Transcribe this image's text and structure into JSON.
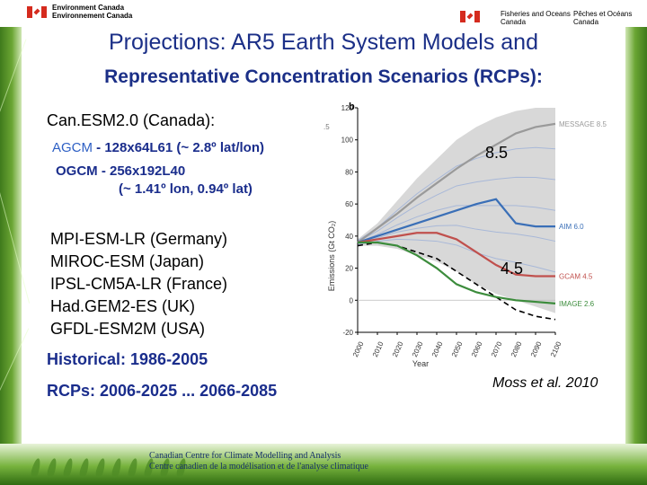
{
  "header": {
    "ec_line1": "Environment Canada",
    "ec_line2": "Environnement Canada",
    "dfo_en_line1": "Fisheries and Oceans",
    "dfo_en_line2": "Canada",
    "dfo_fr_line1": "Pêches et Océans",
    "dfo_fr_line2": "Canada",
    "flag_color": "#d52b1e"
  },
  "title": {
    "line1": "Projections: AR5 Earth System Models and",
    "line2": "Representative Concentration Scenarios (RCPs):"
  },
  "canadian_model": {
    "name": "Can.ESM2.0 (Canada):",
    "agcm_label": "AGCM",
    "agcm_value": "- 128x64L61 (~ 2.8º lat/lon)",
    "ogcm_line1": "OGCM  - 256x192L40",
    "ogcm_line2": "(~ 1.41º lon, 0.94º lat)"
  },
  "other_models": [
    "MPI-ESM-LR (Germany)",
    "MIROC-ESM (Japan)",
    "IPSL-CM5A-LR (France)",
    "Had.GEM2-ES (UK)",
    "GFDL-ESM2M (USA)"
  ],
  "periods": {
    "historical": "Historical: 1986-2005",
    "rcps": "RCPs: 2006-2025 ... 2066-2085"
  },
  "annotations": {
    "rcp85": "8.5",
    "rcp45": "4.5",
    "citation": "Moss et al. 2010"
  },
  "footer": {
    "line1": "Canadian Centre for Climate Modelling and Analysis",
    "line2": "Centre canadien de la modélisation et de l'analyse climatique"
  },
  "chart_data": {
    "type": "line",
    "panel_label": "b",
    "panel_label_left": ".5",
    "xlabel": "Year",
    "ylabel": "Emissions (Gt CO₂)",
    "xlim": [
      2000,
      2100
    ],
    "ylim": [
      -20,
      120
    ],
    "xticks": [
      "2000",
      "2010",
      "2020",
      "2030",
      "2040",
      "2050",
      "2060",
      "2070",
      "2080",
      "2090",
      "2100"
    ],
    "yticks": [
      "-20",
      "0",
      "20",
      "40",
      "60",
      "80",
      "100",
      "120"
    ],
    "grid": false,
    "x": [
      2000,
      2010,
      2020,
      2030,
      2040,
      2050,
      2060,
      2070,
      2080,
      2090,
      2100
    ],
    "envelope": {
      "upper": [
        38,
        48,
        62,
        76,
        88,
        100,
        108,
        114,
        118,
        120,
        120
      ],
      "lower": [
        34,
        34,
        32,
        28,
        24,
        18,
        10,
        4,
        0,
        -4,
        -8
      ],
      "color": "#c8c8c8"
    },
    "series": [
      {
        "name": "MESSAGE 8.5",
        "color": "#9a9a9a",
        "values": [
          36,
          45,
          54,
          64,
          73,
          82,
          90,
          97,
          104,
          108,
          110
        ]
      },
      {
        "name": "AIM 6.0",
        "color": "#3a6fb7",
        "values": [
          36,
          40,
          44,
          48,
          52,
          56,
          60,
          63,
          48,
          46,
          46
        ]
      },
      {
        "name": "GCAM 4.5",
        "color": "#c0504d",
        "values": [
          36,
          38,
          40,
          42,
          42,
          38,
          30,
          22,
          16,
          15,
          15
        ]
      },
      {
        "name": "IMAGE 2.6",
        "color": "#3c8c3c",
        "values": [
          36,
          36,
          34,
          28,
          20,
          10,
          5,
          2,
          0,
          -1,
          -2
        ]
      }
    ],
    "reference_line": {
      "color": "#000000",
      "dash": true,
      "values": [
        34,
        36,
        34,
        30,
        26,
        18,
        10,
        2,
        -6,
        -10,
        -12
      ]
    },
    "background_lines_color": "#a8b8d8"
  }
}
